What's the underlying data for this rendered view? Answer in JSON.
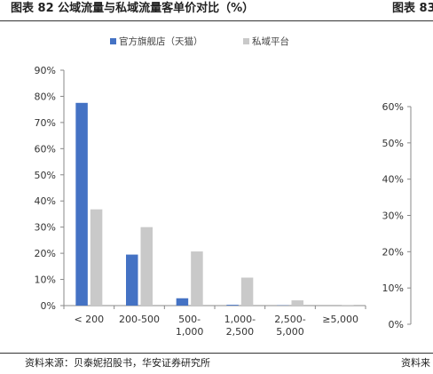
{
  "figure": {
    "title": "图表 82 公域流量与私域流量客单价对比（%）",
    "source": "资料来源：贝泰妮招股书，华安证券研究所"
  },
  "neighbor_figure": {
    "title_fragment": "图表 83",
    "source_fragment": "资料来",
    "y_ticks": [
      "60%",
      "50%",
      "40%",
      "30%",
      "20%",
      "10%",
      "0%"
    ]
  },
  "chart_data": {
    "type": "bar",
    "title": "",
    "xlabel": "",
    "ylabel": "",
    "categories": [
      [
        "< 200"
      ],
      [
        "200-500"
      ],
      [
        "500-",
        "1,000"
      ],
      [
        "1,000-",
        "2,500"
      ],
      [
        "2,500-",
        "5,000"
      ],
      [
        "≥5,000"
      ]
    ],
    "series": [
      {
        "name": "官方旗舰店（天猫）",
        "color": "#4472C4",
        "values": [
          77.5,
          19.5,
          2.8,
          0.3,
          0.1,
          0.0
        ]
      },
      {
        "name": "私域平台",
        "color": "#C9C9C9",
        "values": [
          36.8,
          30.0,
          20.7,
          10.7,
          2.0,
          0.1
        ]
      }
    ],
    "ylim": [
      0,
      90
    ],
    "y_ticks": [
      0,
      10,
      20,
      30,
      40,
      50,
      60,
      70,
      80,
      90
    ],
    "y_tick_format": "percent",
    "legend_position": "top",
    "grid": false
  }
}
